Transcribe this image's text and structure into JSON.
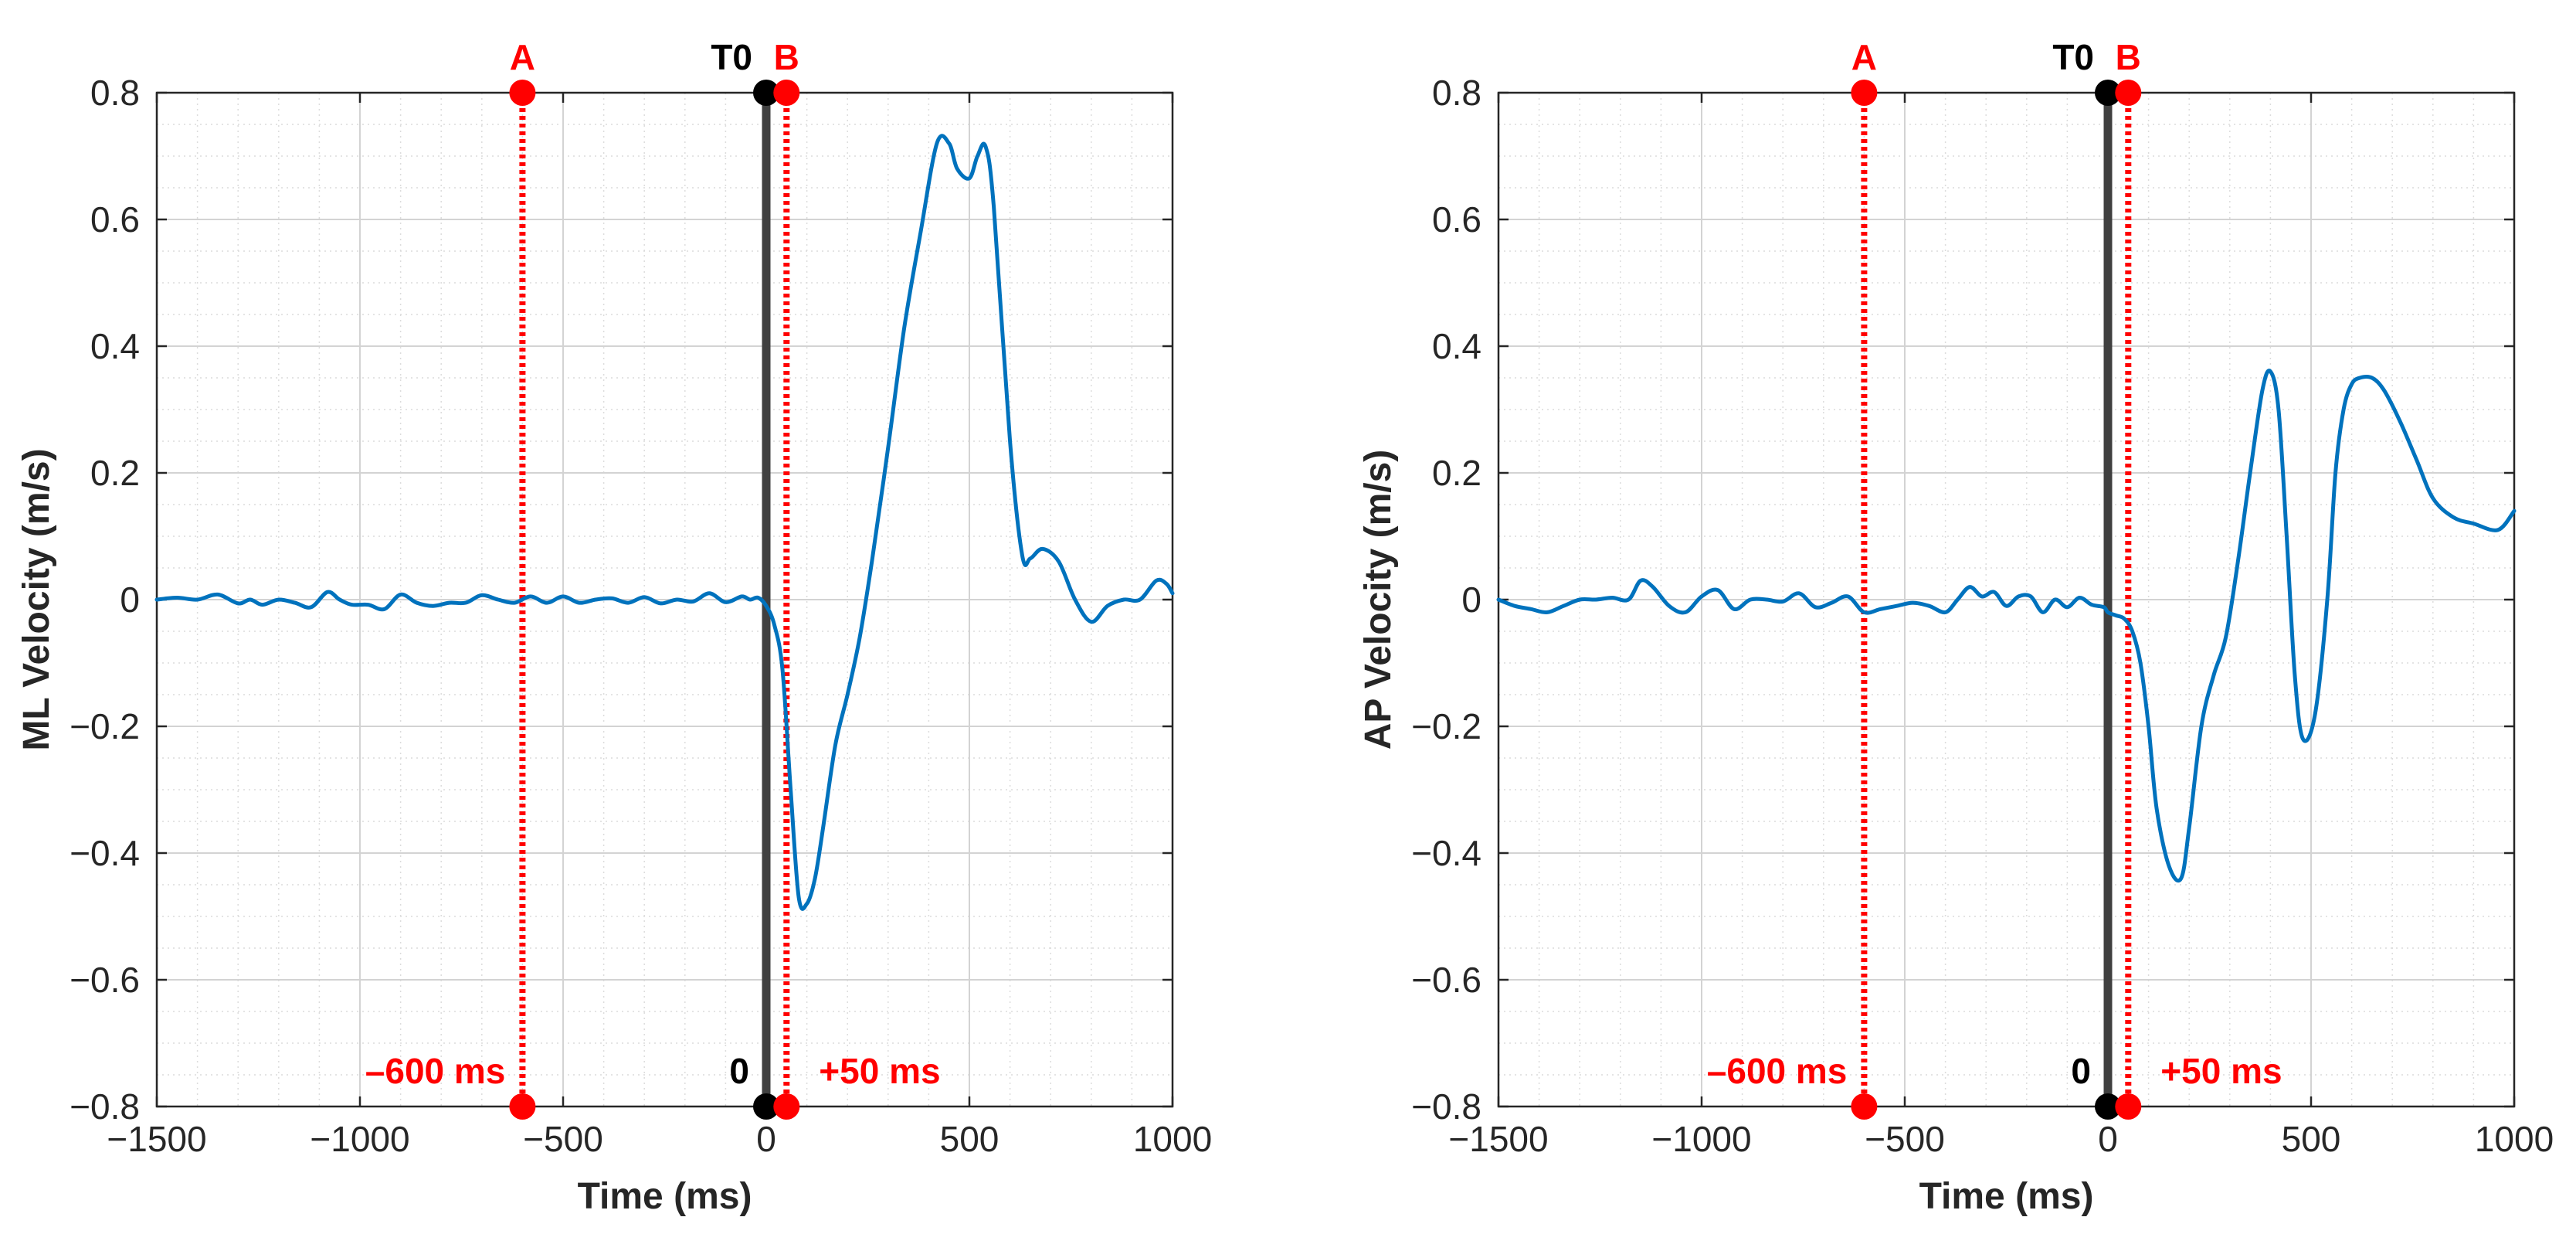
{
  "chart_data": [
    {
      "type": "line",
      "panel": "left",
      "title": "",
      "xlabel": "Time (ms)",
      "ylabel": "ML Velocity (m/s)",
      "xlim": [
        -1500,
        1000
      ],
      "ylim": [
        -0.8,
        0.8
      ],
      "xticks": [
        -1500,
        -1000,
        -500,
        0,
        500,
        1000
      ],
      "xtick_labels": [
        "−1500",
        "−1000",
        "−500",
        "0",
        "500",
        "1000"
      ],
      "yticks": [
        -0.8,
        -0.6,
        -0.4,
        -0.2,
        0,
        0.2,
        0.4,
        0.6,
        0.8
      ],
      "ytick_labels": [
        "−0.8",
        "−0.6",
        "−0.4",
        "−0.2",
        "0",
        "0.2",
        "0.4",
        "0.6",
        "0.8"
      ],
      "grid": true,
      "minor_grid": true,
      "series": [
        {
          "name": "ML velocity",
          "color": "#0072BD",
          "x": [
            -1500,
            -1450,
            -1400,
            -1350,
            -1300,
            -1270,
            -1240,
            -1200,
            -1160,
            -1120,
            -1080,
            -1050,
            -1020,
            -980,
            -940,
            -900,
            -860,
            -820,
            -780,
            -740,
            -700,
            -660,
            -620,
            -580,
            -540,
            -500,
            -460,
            -420,
            -380,
            -340,
            -300,
            -260,
            -220,
            -180,
            -140,
            -100,
            -60,
            -40,
            -20,
            0,
            20,
            40,
            60,
            80,
            100,
            120,
            140,
            170,
            200,
            230,
            260,
            300,
            340,
            380,
            420,
            450,
            470,
            500,
            520,
            540,
            560,
            600,
            630,
            650,
            680,
            720,
            760,
            800,
            840,
            880,
            920,
            960,
            985,
            1000
          ],
          "values": [
            0.0,
            0.003,
            0.0,
            0.008,
            -0.006,
            0.0,
            -0.008,
            0.0,
            -0.005,
            -0.012,
            0.012,
            0.0,
            -0.008,
            -0.008,
            -0.015,
            0.008,
            -0.005,
            -0.01,
            -0.005,
            -0.005,
            0.007,
            0.0,
            -0.005,
            0.005,
            -0.005,
            0.005,
            -0.005,
            0.0,
            0.002,
            -0.005,
            0.004,
            -0.006,
            0.0,
            -0.003,
            0.01,
            -0.004,
            0.005,
            0.0,
            0.003,
            -0.01,
            -0.04,
            -0.11,
            -0.3,
            -0.47,
            -0.48,
            -0.44,
            -0.36,
            -0.23,
            -0.15,
            -0.06,
            0.06,
            0.24,
            0.43,
            0.58,
            0.72,
            0.72,
            0.68,
            0.665,
            0.7,
            0.715,
            0.62,
            0.25,
            0.07,
            0.065,
            0.08,
            0.06,
            0.0,
            -0.035,
            -0.01,
            0.0,
            0.0,
            0.03,
            0.025,
            0.01
          ]
        }
      ],
      "markers": [
        {
          "label": "A",
          "x": -600,
          "annotation": "–600 ms",
          "color": "#FF0000",
          "style": "dotted"
        },
        {
          "label": "T0",
          "x": 0,
          "annotation": "0",
          "color": "#000000",
          "style": "solid"
        },
        {
          "label": "B",
          "x": 50,
          "annotation": "+50 ms",
          "color": "#FF0000",
          "style": "dotted"
        }
      ]
    },
    {
      "type": "line",
      "panel": "right",
      "title": "",
      "xlabel": "Time (ms)",
      "ylabel": "AP Velocity (m/s)",
      "xlim": [
        -1500,
        1000
      ],
      "ylim": [
        -0.8,
        0.8
      ],
      "xticks": [
        -1500,
        -1000,
        -500,
        0,
        500,
        1000
      ],
      "xtick_labels": [
        "−1500",
        "−1000",
        "−500",
        "0",
        "500",
        "1000"
      ],
      "yticks": [
        -0.8,
        -0.6,
        -0.4,
        -0.2,
        0,
        0.2,
        0.4,
        0.6,
        0.8
      ],
      "ytick_labels": [
        "−0.8",
        "−0.6",
        "−0.4",
        "−0.2",
        "0",
        "0.2",
        "0.4",
        "0.6",
        "0.8"
      ],
      "grid": true,
      "minor_grid": true,
      "series": [
        {
          "name": "AP velocity",
          "color": "#0072BD",
          "x": [
            -1500,
            -1460,
            -1420,
            -1380,
            -1340,
            -1300,
            -1260,
            -1220,
            -1180,
            -1150,
            -1120,
            -1080,
            -1040,
            -1000,
            -960,
            -920,
            -880,
            -840,
            -800,
            -760,
            -720,
            -680,
            -640,
            -600,
            -560,
            -520,
            -480,
            -440,
            -400,
            -370,
            -340,
            -310,
            -280,
            -250,
            -220,
            -190,
            -160,
            -130,
            -100,
            -70,
            -40,
            -10,
            0,
            20,
            40,
            60,
            80,
            100,
            120,
            150,
            180,
            200,
            230,
            260,
            290,
            320,
            350,
            380,
            400,
            420,
            440,
            460,
            480,
            510,
            540,
            560,
            580,
            600,
            620,
            650,
            680,
            720,
            760,
            800,
            850,
            900,
            960,
            1000
          ],
          "values": [
            0.0,
            -0.01,
            -0.015,
            -0.02,
            -0.01,
            0.0,
            0.0,
            0.003,
            0.0,
            0.03,
            0.02,
            -0.01,
            -0.02,
            0.005,
            0.015,
            -0.015,
            0.0,
            0.0,
            -0.003,
            0.01,
            -0.012,
            -0.005,
            0.005,
            -0.02,
            -0.015,
            -0.01,
            -0.005,
            -0.01,
            -0.02,
            0.0,
            0.02,
            0.005,
            0.012,
            -0.01,
            0.005,
            0.005,
            -0.02,
            0.0,
            -0.012,
            0.003,
            -0.008,
            -0.012,
            -0.02,
            -0.025,
            -0.03,
            -0.05,
            -0.1,
            -0.2,
            -0.33,
            -0.42,
            -0.44,
            -0.36,
            -0.2,
            -0.12,
            -0.06,
            0.06,
            0.2,
            0.33,
            0.36,
            0.3,
            0.1,
            -0.12,
            -0.22,
            -0.18,
            0.0,
            0.2,
            0.3,
            0.34,
            0.35,
            0.35,
            0.33,
            0.28,
            0.22,
            0.16,
            0.13,
            0.12,
            0.11,
            0.14
          ]
        }
      ],
      "markers": [
        {
          "label": "A",
          "x": -600,
          "annotation": "–600 ms",
          "color": "#FF0000",
          "style": "dotted"
        },
        {
          "label": "T0",
          "x": 0,
          "annotation": "0",
          "color": "#000000",
          "style": "solid"
        },
        {
          "label": "B",
          "x": 50,
          "annotation": "+50 ms",
          "color": "#FF0000",
          "style": "dotted"
        }
      ]
    }
  ]
}
